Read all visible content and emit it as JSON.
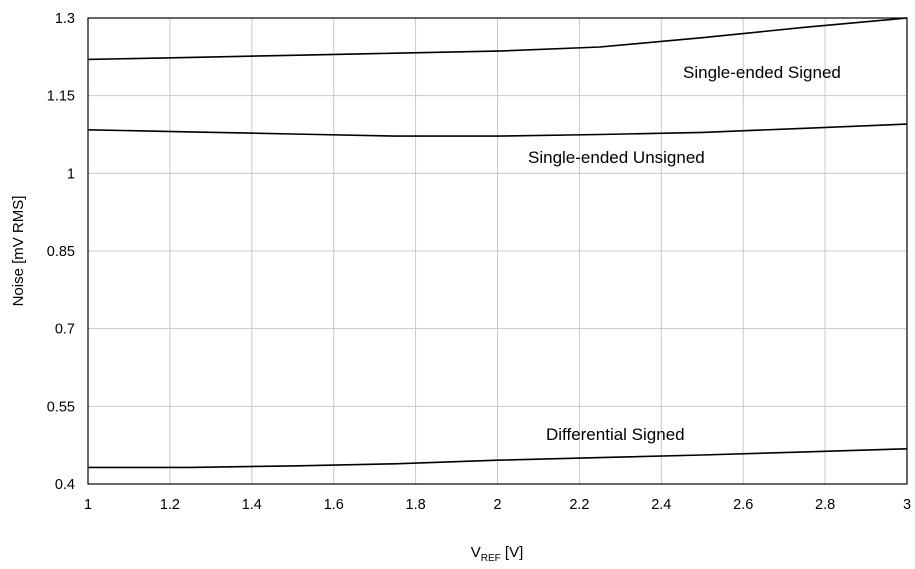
{
  "chart_data": {
    "type": "line",
    "ylabel": "Noise [mV RMS]",
    "xlabel_main": "V",
    "xlabel_sub": "REF",
    "xlabel_unit": " [V]",
    "xlim": [
      1,
      3
    ],
    "ylim": [
      0.4,
      1.3
    ],
    "grid": true,
    "x_ticks": [
      "1",
      "1.2",
      "1.4",
      "1.6",
      "1.8",
      "2",
      "2.2",
      "2.4",
      "2.6",
      "2.8",
      "3"
    ],
    "y_ticks": [
      "0.4",
      "0.55",
      "0.7",
      "0.85",
      "1",
      "1.15",
      "1.3"
    ],
    "series": [
      {
        "name": "Single-ended Signed",
        "x": [
          1,
          1.25,
          1.5,
          1.75,
          2,
          2.25,
          2.5,
          2.75,
          3
        ],
        "y": [
          1.22,
          1.224,
          1.228,
          1.232,
          1.236,
          1.244,
          1.262,
          1.282,
          1.3
        ]
      },
      {
        "name": "Single-ended Unsigned",
        "x": [
          1,
          1.25,
          1.5,
          1.75,
          2,
          2.25,
          2.5,
          2.75,
          3
        ],
        "y": [
          1.084,
          1.08,
          1.076,
          1.072,
          1.072,
          1.075,
          1.079,
          1.087,
          1.095
        ]
      },
      {
        "name": "Differential Signed",
        "x": [
          1,
          1.25,
          1.5,
          1.75,
          2,
          2.25,
          2.5,
          2.75,
          3
        ],
        "y": [
          0.432,
          0.432,
          0.435,
          0.439,
          0.446,
          0.451,
          0.456,
          0.462,
          0.468
        ]
      }
    ]
  }
}
